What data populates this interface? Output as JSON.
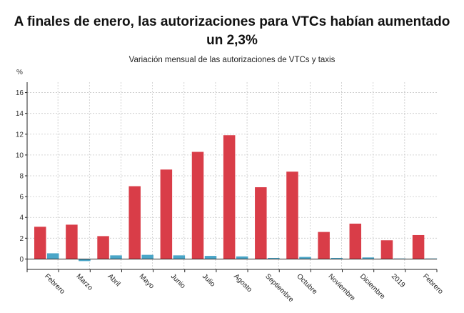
{
  "header": {
    "title": "A finales de enero, las autorizaciones para VTCs habían aumentado un 2,3%",
    "subtitle": "Variación mensual de las autorizaciones de VTCs y taxis",
    "unit": "%"
  },
  "colors": {
    "vtc": "#d93d48",
    "taxi": "#4aa6c8",
    "grid": "#c8c8c8",
    "axis": "#222222"
  },
  "chart_data": {
    "type": "bar",
    "categories": [
      "Febrero",
      "Marzo",
      "Abril",
      "Mayo",
      "Junio",
      "Julio",
      "Agosto",
      "Septiembre",
      "Octubre",
      "Noviembre",
      "Diciembre",
      "2019",
      "Febrero"
    ],
    "series": [
      {
        "values": [
          3.1,
          3.3,
          2.2,
          7.0,
          8.6,
          10.3,
          11.9,
          6.9,
          8.4,
          2.6,
          3.4,
          1.8,
          2.3
        ]
      },
      {
        "values": [
          0.55,
          -0.2,
          0.35,
          0.4,
          0.35,
          0.3,
          0.25,
          0.1,
          0.2,
          0.1,
          0.15,
          0.05,
          0.05
        ]
      }
    ],
    "yticks": [
      0,
      2,
      4,
      6,
      8,
      10,
      12,
      14,
      16
    ],
    "ylim": [
      -1,
      17
    ],
    "grid": true,
    "legend": "none"
  }
}
